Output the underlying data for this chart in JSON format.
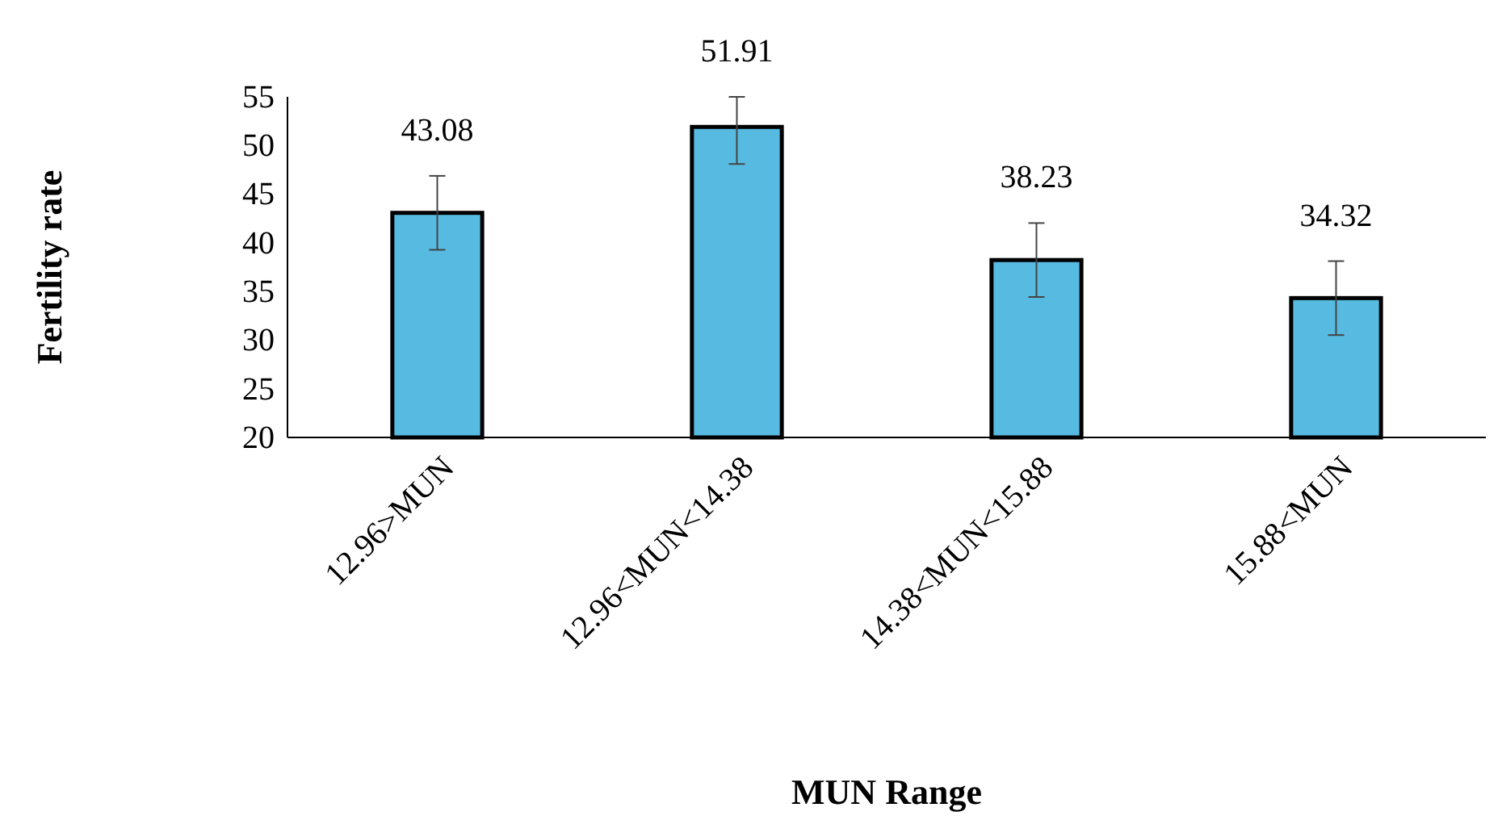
{
  "chart_data": {
    "type": "bar",
    "xlabel": "MUN Range",
    "ylabel": "Fertility rate",
    "categories": [
      "12.96>MUN",
      "12.96<MUN<14.38",
      "14.38<MUN<15.88",
      "15.88<MUN"
    ],
    "values": [
      43.08,
      51.91,
      38.23,
      34.32
    ],
    "errors": [
      3.8,
      [
        48.1,
        55
      ],
      3.8,
      3.8
    ],
    "color": "#1fa3d6",
    "ylim": [
      20,
      55
    ],
    "yticks": [
      20,
      25,
      30,
      35,
      40,
      45,
      50,
      55
    ],
    "data_labels": true,
    "grid": false
  }
}
